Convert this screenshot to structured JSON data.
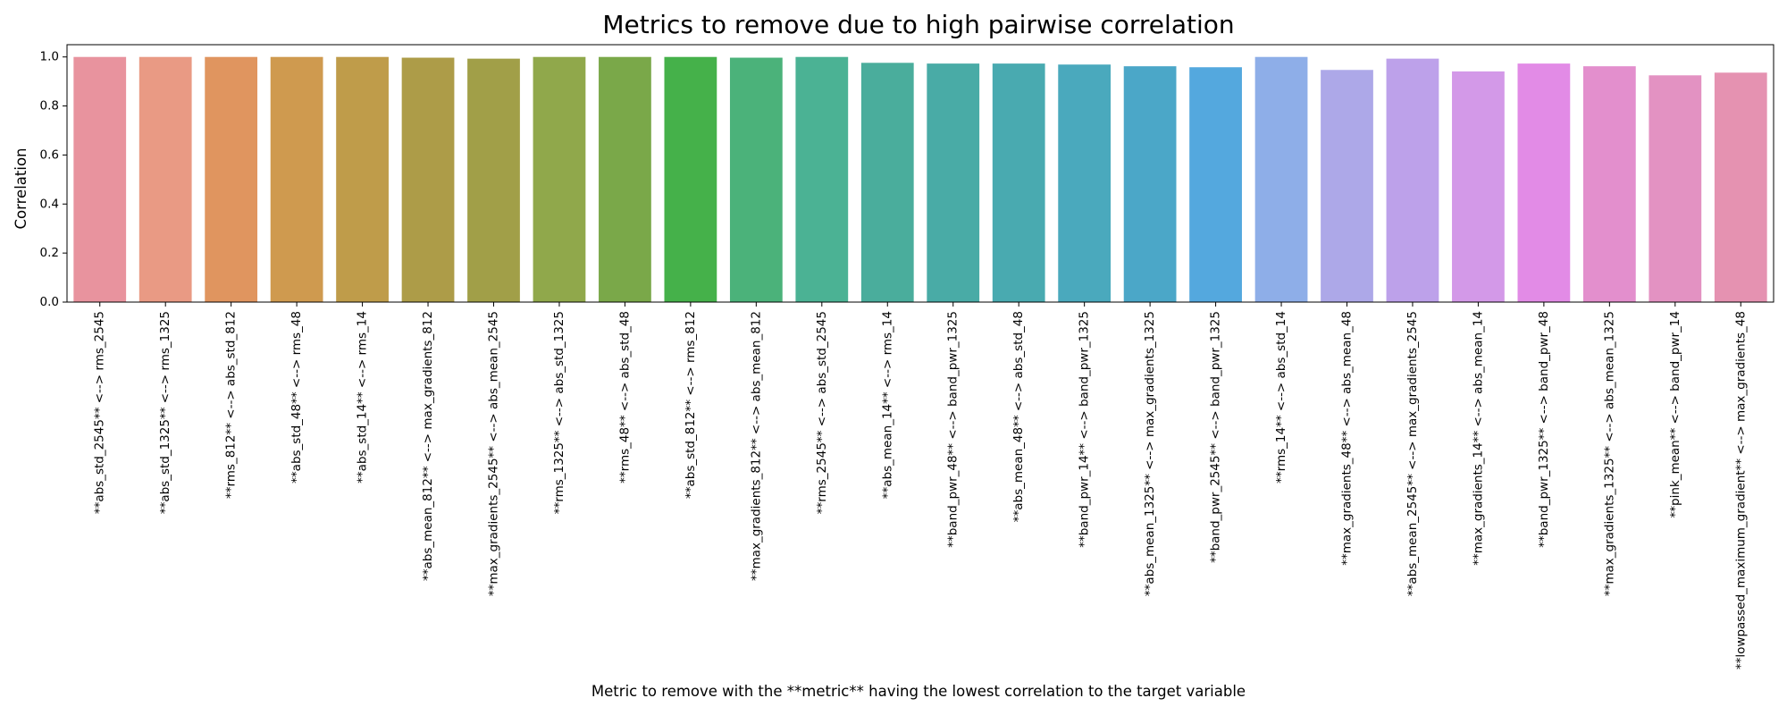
{
  "chart_data": {
    "type": "bar",
    "title": "Metrics to remove due to high pairwise correlation",
    "xlabel": "Metric to remove with the **metric** having the lowest correlation to the target variable",
    "ylabel": "Correlation",
    "ylim": [
      0,
      1.05
    ],
    "yticks": [
      "0.0",
      "0.2",
      "0.4",
      "0.6",
      "0.8",
      "1.0"
    ],
    "grid": false,
    "categories": [
      "**abs_std_2545** <--> rms_2545",
      "**abs_std_1325** <--> rms_1325",
      "**rms_812** <--> abs_std_812",
      "**abs_std_48** <--> rms_48",
      "**abs_std_14** <--> rms_14",
      "**abs_mean_812** <--> max_gradients_812",
      "**max_gradients_2545** <--> abs_mean_2545",
      "**rms_1325** <--> abs_std_1325",
      "**rms_48** <--> abs_std_48",
      "**abs_std_812** <--> rms_812",
      "**max_gradients_812** <--> abs_mean_812",
      "**rms_2545** <--> abs_std_2545",
      "**abs_mean_14** <--> rms_14",
      "**band_pwr_48** <--> band_pwr_1325",
      "**abs_mean_48** <--> abs_std_48",
      "**band_pwr_14** <--> band_pwr_1325",
      "**abs_mean_1325** <--> max_gradients_1325",
      "**band_pwr_2545** <--> band_pwr_1325",
      "**rms_14** <--> abs_std_14",
      "**max_gradients_48** <--> abs_mean_48",
      "**abs_mean_2545** <--> max_gradients_2545",
      "**max_gradients_14** <--> abs_mean_14",
      "**band_pwr_1325** <--> band_pwr_48",
      "**max_gradients_1325** <--> abs_mean_1325",
      "**pink_mean** <--> band_pwr_14",
      "**lowpassed_maximum_gradient** <--> max_gradients_48"
    ],
    "values": [
      1.0,
      1.0,
      1.0,
      1.0,
      1.0,
      0.997,
      0.993,
      1.0,
      1.0,
      1.0,
      0.997,
      1.0,
      0.976,
      0.973,
      0.973,
      0.969,
      0.962,
      0.958,
      1.0,
      0.947,
      0.993,
      0.941,
      0.973,
      0.962,
      0.925,
      0.936
    ],
    "colors": [
      "#e8939e",
      "#e99a84",
      "#e0955f",
      "#cf9a4f",
      "#bf9c4a",
      "#ad9c48",
      "#a19f48",
      "#90a84b",
      "#7aa849",
      "#45b14a",
      "#4bb27a",
      "#4bb294",
      "#4aad9c",
      "#49aba6",
      "#49aab0",
      "#4aa9bd",
      "#4ba7c8",
      "#54a8de",
      "#8eaee8",
      "#ada8e8",
      "#bda1ea",
      "#d399e8",
      "#e28be6",
      "#e38fcd",
      "#e392c2",
      "#e592b1"
    ]
  }
}
